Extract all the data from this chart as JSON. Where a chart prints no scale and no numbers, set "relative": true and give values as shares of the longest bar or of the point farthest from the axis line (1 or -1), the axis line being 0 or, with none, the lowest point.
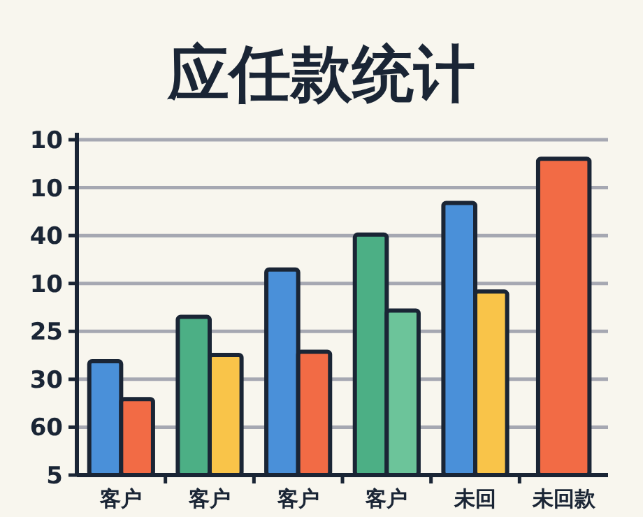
{
  "chart_data": {
    "type": "bar",
    "title": "应任款统计",
    "categories": [
      "客户",
      "客户",
      "客户",
      "客户",
      "未回",
      "未回款"
    ],
    "series": [
      {
        "colors": [
          "#4a90d9",
          "#4caf85",
          "#4a90d9",
          "#4caf85",
          "#4a90d9",
          "#f26b45"
        ],
        "values": [
          0.36,
          0.5,
          0.65,
          0.76,
          0.86,
          1
        ]
      },
      {
        "colors": [
          "#f26b45",
          "#f9c449",
          "#f26b45",
          "#6cc49a",
          "#f9c449",
          null
        ],
        "values": [
          0.24,
          0.38,
          0.39,
          0.52,
          0.58,
          null
        ]
      }
    ],
    "relative": true,
    "annotations": [
      "10",
      "10",
      "40",
      "10",
      "25",
      "30",
      "60",
      "5"
    ],
    "grid": "y"
  }
}
